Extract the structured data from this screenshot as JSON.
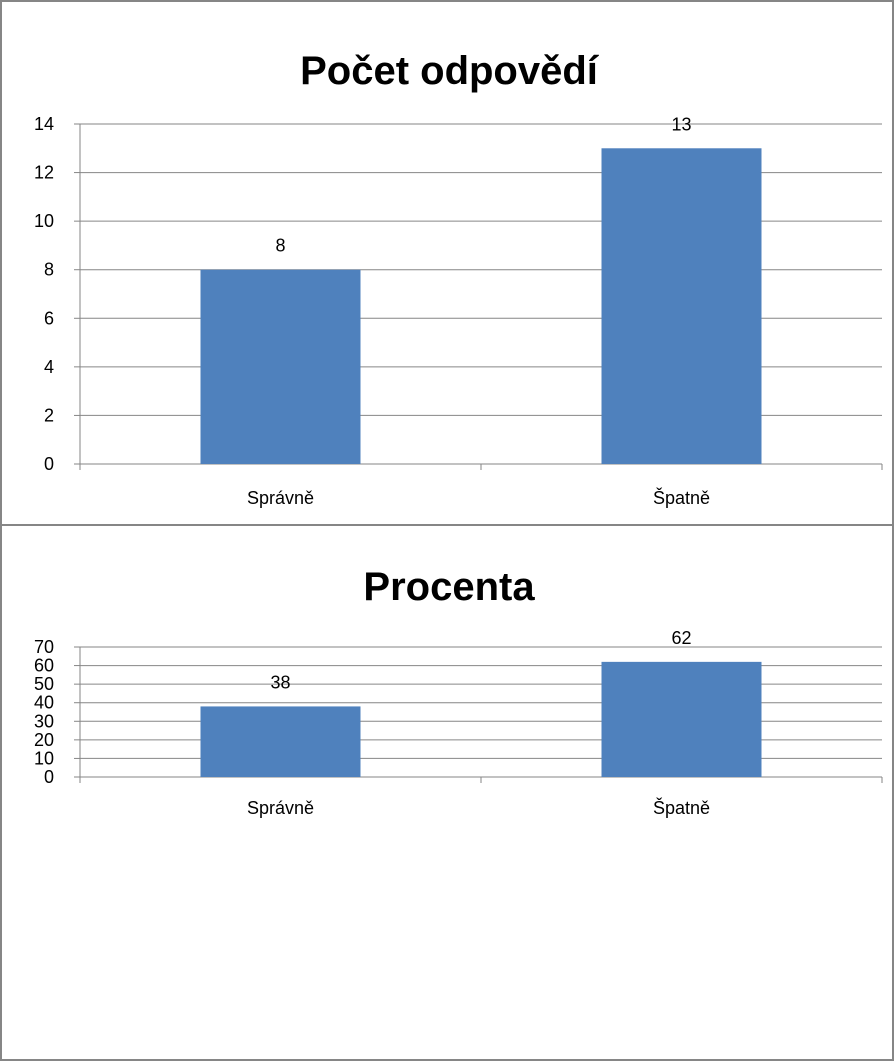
{
  "chart_data": [
    {
      "type": "bar",
      "title": "Počet odpovědí",
      "categories": [
        "Správně",
        "Špatně"
      ],
      "values": [
        8,
        13
      ],
      "ylim": [
        0,
        14
      ],
      "yticks": [
        0,
        2,
        4,
        6,
        8,
        10,
        12,
        14
      ],
      "data_labels": true,
      "grid": true,
      "legend": "none",
      "bar_color": "#4F81BD",
      "grid_color": "#868686"
    },
    {
      "type": "bar",
      "title": "Procenta",
      "categories": [
        "Správně",
        "Špatně"
      ],
      "values": [
        38,
        62
      ],
      "ylim": [
        0,
        70
      ],
      "yticks": [
        0,
        10,
        20,
        30,
        40,
        50,
        60,
        70
      ],
      "data_labels": true,
      "grid": true,
      "legend": "none",
      "bar_color": "#4F81BD",
      "grid_color": "#868686"
    }
  ]
}
